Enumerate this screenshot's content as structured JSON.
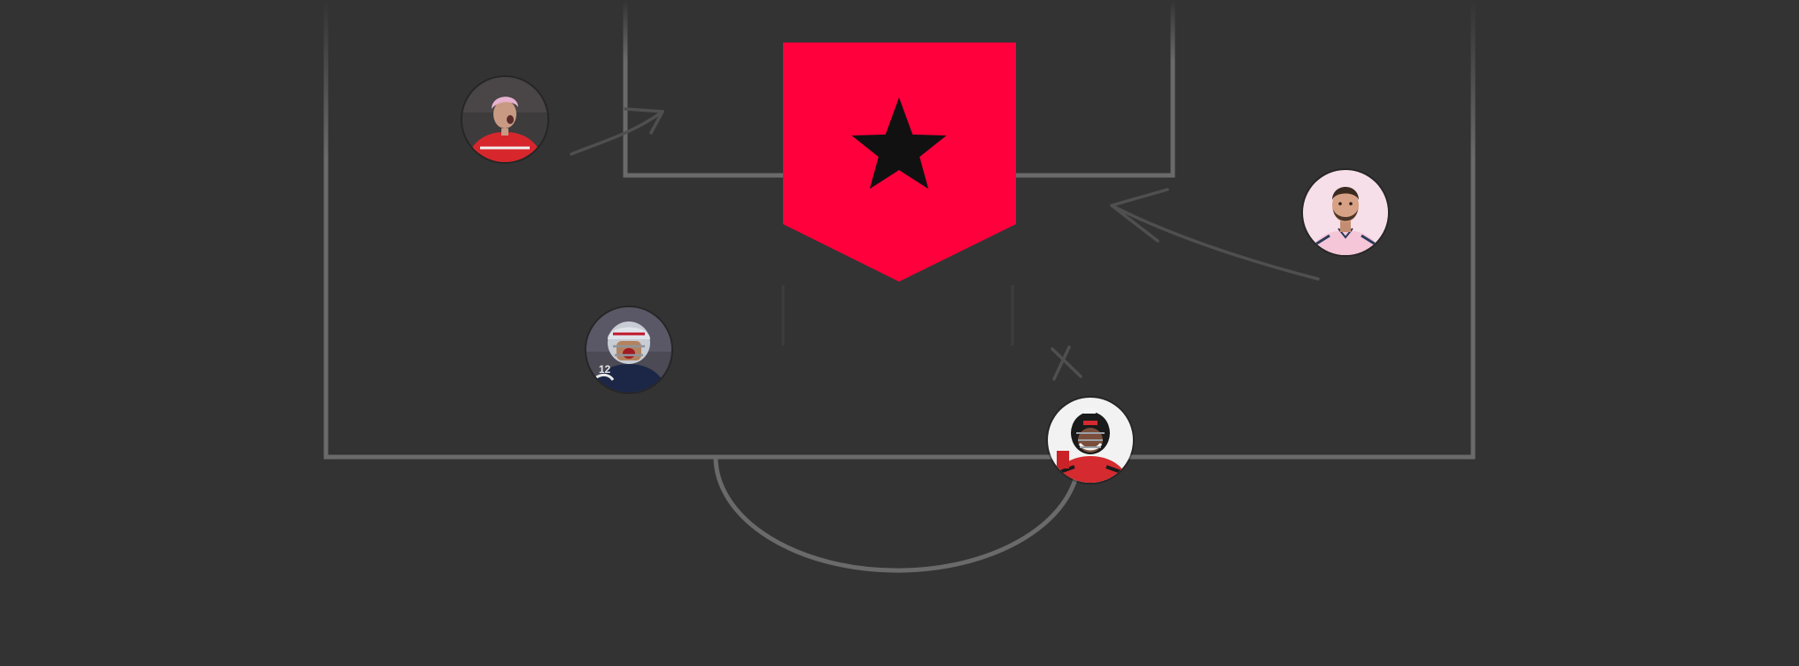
{
  "colors": {
    "background": "#333333",
    "pitch_lines": "#6a6a6a",
    "sketch_marks": "#4f4f4f",
    "badge": "#ff003c",
    "star": "#111111"
  },
  "badge": {
    "icon": "star-icon"
  },
  "players": [
    {
      "icon": "player-avatar-red-jersey-pink-hair"
    },
    {
      "icon": "player-avatar-pink-shirt-beard"
    },
    {
      "icon": "player-avatar-navy-football-helmet"
    },
    {
      "icon": "player-avatar-red-hockey-helmet"
    }
  ]
}
